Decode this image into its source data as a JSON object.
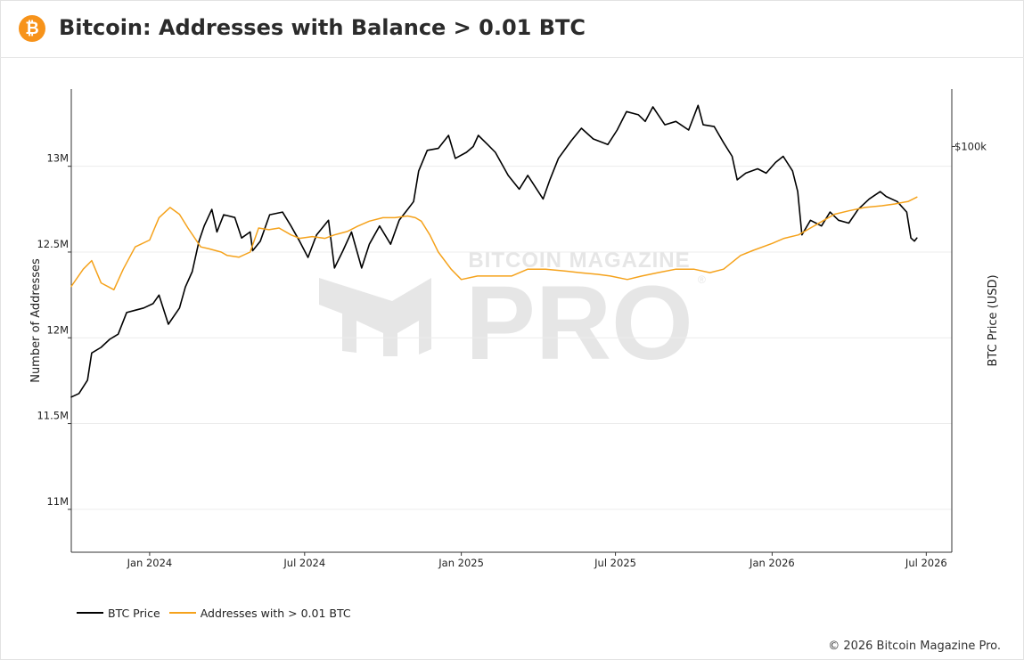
{
  "header": {
    "logo_glyph": "₿",
    "title": "Bitcoin: Addresses with Balance > 0.01 BTC"
  },
  "footer": {
    "copyright": "© 2026 Bitcoin Magazine Pro."
  },
  "watermark": {
    "top": "BITCOIN MAGAZINE",
    "main": "PRO",
    "reg": "®"
  },
  "colors": {
    "btc_price": "#000000",
    "addresses": "#f5a21b",
    "grid": "#ececec",
    "logo": "#f7931a"
  },
  "chart_data": {
    "type": "line",
    "title": "Bitcoin: Addresses with Balance > 0.01 BTC",
    "ylabel_left": "Number of Addresses",
    "ylabel_right": "BTC Price (USD)",
    "y_left_ticks": [
      {
        "value": 11000000,
        "label": "11M"
      },
      {
        "value": 11500000,
        "label": "11.5M"
      },
      {
        "value": 12000000,
        "label": "12M"
      },
      {
        "value": 12500000,
        "label": "12.5M"
      },
      {
        "value": 13000000,
        "label": "13M"
      }
    ],
    "y_left_range": [
      10750000,
      13450000
    ],
    "y_right_ticks": [
      {
        "value": 100000,
        "label": "$100k"
      }
    ],
    "y_right_range": [
      12000,
      135000
    ],
    "x_range": [
      "2023-10-01",
      "2026-07-31"
    ],
    "x_ticks": [
      {
        "date": "2024-01-01",
        "label": "Jan 2024"
      },
      {
        "date": "2024-07-01",
        "label": "Jul 2024"
      },
      {
        "date": "2025-01-01",
        "label": "Jan 2025"
      },
      {
        "date": "2025-07-01",
        "label": "Jul 2025"
      },
      {
        "date": "2026-01-01",
        "label": "Jan 2026"
      },
      {
        "date": "2026-07-01",
        "label": "Jul 2026"
      }
    ],
    "legend_position": "bottom-left",
    "grid": true,
    "series": [
      {
        "name": "BTC Price",
        "axis": "right",
        "color": "#000000",
        "points": [
          [
            "2023-10-01",
            27000
          ],
          [
            "2023-10-10",
            27500
          ],
          [
            "2023-10-20",
            29500
          ],
          [
            "2023-10-25",
            34000
          ],
          [
            "2023-11-05",
            35000
          ],
          [
            "2023-11-15",
            36500
          ],
          [
            "2023-11-25",
            37500
          ],
          [
            "2023-12-05",
            42000
          ],
          [
            "2023-12-15",
            42500
          ],
          [
            "2023-12-25",
            43000
          ],
          [
            "2024-01-05",
            44000
          ],
          [
            "2024-01-12",
            46000
          ],
          [
            "2024-01-23",
            39500
          ],
          [
            "2024-02-05",
            43000
          ],
          [
            "2024-02-12",
            48000
          ],
          [
            "2024-02-20",
            52000
          ],
          [
            "2024-02-28",
            61000
          ],
          [
            "2024-03-05",
            66000
          ],
          [
            "2024-03-14",
            72000
          ],
          [
            "2024-03-20",
            64000
          ],
          [
            "2024-03-28",
            70000
          ],
          [
            "2024-04-10",
            69000
          ],
          [
            "2024-04-18",
            62000
          ],
          [
            "2024-04-28",
            64000
          ],
          [
            "2024-05-01",
            58000
          ],
          [
            "2024-05-10",
            61000
          ],
          [
            "2024-05-21",
            70000
          ],
          [
            "2024-06-05",
            71000
          ],
          [
            "2024-06-15",
            66000
          ],
          [
            "2024-06-25",
            61000
          ],
          [
            "2024-07-05",
            56000
          ],
          [
            "2024-07-15",
            63000
          ],
          [
            "2024-07-29",
            68000
          ],
          [
            "2024-08-05",
            53000
          ],
          [
            "2024-08-15",
            58000
          ],
          [
            "2024-08-25",
            64000
          ],
          [
            "2024-09-06",
            53000
          ],
          [
            "2024-09-15",
            60000
          ],
          [
            "2024-09-27",
            66000
          ],
          [
            "2024-10-10",
            60000
          ],
          [
            "2024-10-20",
            68000
          ],
          [
            "2024-10-30",
            72000
          ],
          [
            "2024-11-06",
            75000
          ],
          [
            "2024-11-12",
            88000
          ],
          [
            "2024-11-22",
            98000
          ],
          [
            "2024-12-05",
            99000
          ],
          [
            "2024-12-17",
            106000
          ],
          [
            "2024-12-25",
            94000
          ],
          [
            "2025-01-07",
            97000
          ],
          [
            "2025-01-15",
            100000
          ],
          [
            "2025-01-21",
            106000
          ],
          [
            "2025-02-01",
            101000
          ],
          [
            "2025-02-10",
            97000
          ],
          [
            "2025-02-25",
            86000
          ],
          [
            "2025-03-10",
            80000
          ],
          [
            "2025-03-20",
            86000
          ],
          [
            "2025-04-07",
            76000
          ],
          [
            "2025-04-15",
            84000
          ],
          [
            "2025-04-25",
            94000
          ],
          [
            "2025-05-10",
            103000
          ],
          [
            "2025-05-22",
            110000
          ],
          [
            "2025-06-05",
            104000
          ],
          [
            "2025-06-22",
            101000
          ],
          [
            "2025-07-03",
            109000
          ],
          [
            "2025-07-14",
            120000
          ],
          [
            "2025-07-28",
            118000
          ],
          [
            "2025-08-05",
            114000
          ],
          [
            "2025-08-14",
            123000
          ],
          [
            "2025-08-28",
            112000
          ],
          [
            "2025-09-10",
            114000
          ],
          [
            "2025-09-25",
            109000
          ],
          [
            "2025-10-06",
            124000
          ],
          [
            "2025-10-12",
            112000
          ],
          [
            "2025-10-25",
            111000
          ],
          [
            "2025-11-05",
            102000
          ],
          [
            "2025-11-15",
            95000
          ],
          [
            "2025-11-21",
            84000
          ],
          [
            "2025-12-01",
            87000
          ],
          [
            "2025-12-15",
            89000
          ],
          [
            "2025-12-25",
            87000
          ],
          [
            "2026-01-05",
            92000
          ],
          [
            "2026-01-14",
            95000
          ],
          [
            "2026-01-25",
            88000
          ],
          [
            "2026-01-31",
            79000
          ],
          [
            "2026-02-05",
            63000
          ],
          [
            "2026-02-15",
            68000
          ],
          [
            "2026-02-28",
            66000
          ],
          [
            "2026-03-10",
            71000
          ],
          [
            "2026-03-20",
            68000
          ],
          [
            "2026-04-01",
            67000
          ],
          [
            "2026-04-12",
            72000
          ],
          [
            "2026-04-25",
            76000
          ],
          [
            "2026-05-08",
            79000
          ],
          [
            "2026-05-15",
            77000
          ],
          [
            "2026-05-28",
            75000
          ],
          [
            "2026-06-08",
            71000
          ],
          [
            "2026-06-13",
            62000
          ],
          [
            "2026-06-17",
            61000
          ],
          [
            "2026-06-20",
            62000
          ]
        ]
      },
      {
        "name": "Addresses with > 0.01 BTC",
        "axis": "left",
        "color": "#f5a21b",
        "points": [
          [
            "2023-10-01",
            12300000
          ],
          [
            "2023-10-15",
            12400000
          ],
          [
            "2023-10-25",
            12450000
          ],
          [
            "2023-11-05",
            12320000
          ],
          [
            "2023-11-20",
            12280000
          ],
          [
            "2023-12-01",
            12400000
          ],
          [
            "2023-12-15",
            12530000
          ],
          [
            "2024-01-01",
            12570000
          ],
          [
            "2024-01-12",
            12700000
          ],
          [
            "2024-01-25",
            12760000
          ],
          [
            "2024-02-05",
            12720000
          ],
          [
            "2024-02-15",
            12640000
          ],
          [
            "2024-03-01",
            12530000
          ],
          [
            "2024-03-10",
            12520000
          ],
          [
            "2024-03-25",
            12500000
          ],
          [
            "2024-04-01",
            12480000
          ],
          [
            "2024-04-15",
            12470000
          ],
          [
            "2024-04-28",
            12500000
          ],
          [
            "2024-05-08",
            12640000
          ],
          [
            "2024-05-20",
            12630000
          ],
          [
            "2024-06-01",
            12640000
          ],
          [
            "2024-06-15",
            12600000
          ],
          [
            "2024-06-25",
            12580000
          ],
          [
            "2024-07-10",
            12590000
          ],
          [
            "2024-07-25",
            12580000
          ],
          [
            "2024-08-05",
            12600000
          ],
          [
            "2024-08-20",
            12620000
          ],
          [
            "2024-09-01",
            12650000
          ],
          [
            "2024-09-15",
            12680000
          ],
          [
            "2024-10-01",
            12700000
          ],
          [
            "2024-10-15",
            12700000
          ],
          [
            "2024-10-30",
            12710000
          ],
          [
            "2024-11-08",
            12700000
          ],
          [
            "2024-11-15",
            12680000
          ],
          [
            "2024-11-25",
            12600000
          ],
          [
            "2024-12-05",
            12500000
          ],
          [
            "2024-12-20",
            12400000
          ],
          [
            "2025-01-01",
            12340000
          ],
          [
            "2025-01-20",
            12360000
          ],
          [
            "2025-02-10",
            12360000
          ],
          [
            "2025-03-01",
            12360000
          ],
          [
            "2025-03-20",
            12400000
          ],
          [
            "2025-04-10",
            12400000
          ],
          [
            "2025-05-01",
            12390000
          ],
          [
            "2025-05-20",
            12380000
          ],
          [
            "2025-06-10",
            12370000
          ],
          [
            "2025-06-25",
            12360000
          ],
          [
            "2025-07-15",
            12340000
          ],
          [
            "2025-08-01",
            12360000
          ],
          [
            "2025-08-20",
            12380000
          ],
          [
            "2025-09-10",
            12400000
          ],
          [
            "2025-10-01",
            12400000
          ],
          [
            "2025-10-20",
            12380000
          ],
          [
            "2025-11-05",
            12400000
          ],
          [
            "2025-11-25",
            12480000
          ],
          [
            "2025-12-10",
            12510000
          ],
          [
            "2026-01-01",
            12550000
          ],
          [
            "2026-01-15",
            12580000
          ],
          [
            "2026-02-01",
            12600000
          ],
          [
            "2026-02-15",
            12640000
          ],
          [
            "2026-03-01",
            12680000
          ],
          [
            "2026-03-15",
            12720000
          ],
          [
            "2026-04-01",
            12740000
          ],
          [
            "2026-04-20",
            12760000
          ],
          [
            "2026-05-10",
            12770000
          ],
          [
            "2026-05-25",
            12780000
          ],
          [
            "2026-06-10",
            12795000
          ],
          [
            "2026-06-20",
            12820000
          ]
        ]
      }
    ]
  },
  "legend": {
    "items": [
      {
        "label": "BTC Price",
        "color": "#000000"
      },
      {
        "label": "Addresses with > 0.01 BTC",
        "color": "#f5a21b"
      }
    ]
  }
}
